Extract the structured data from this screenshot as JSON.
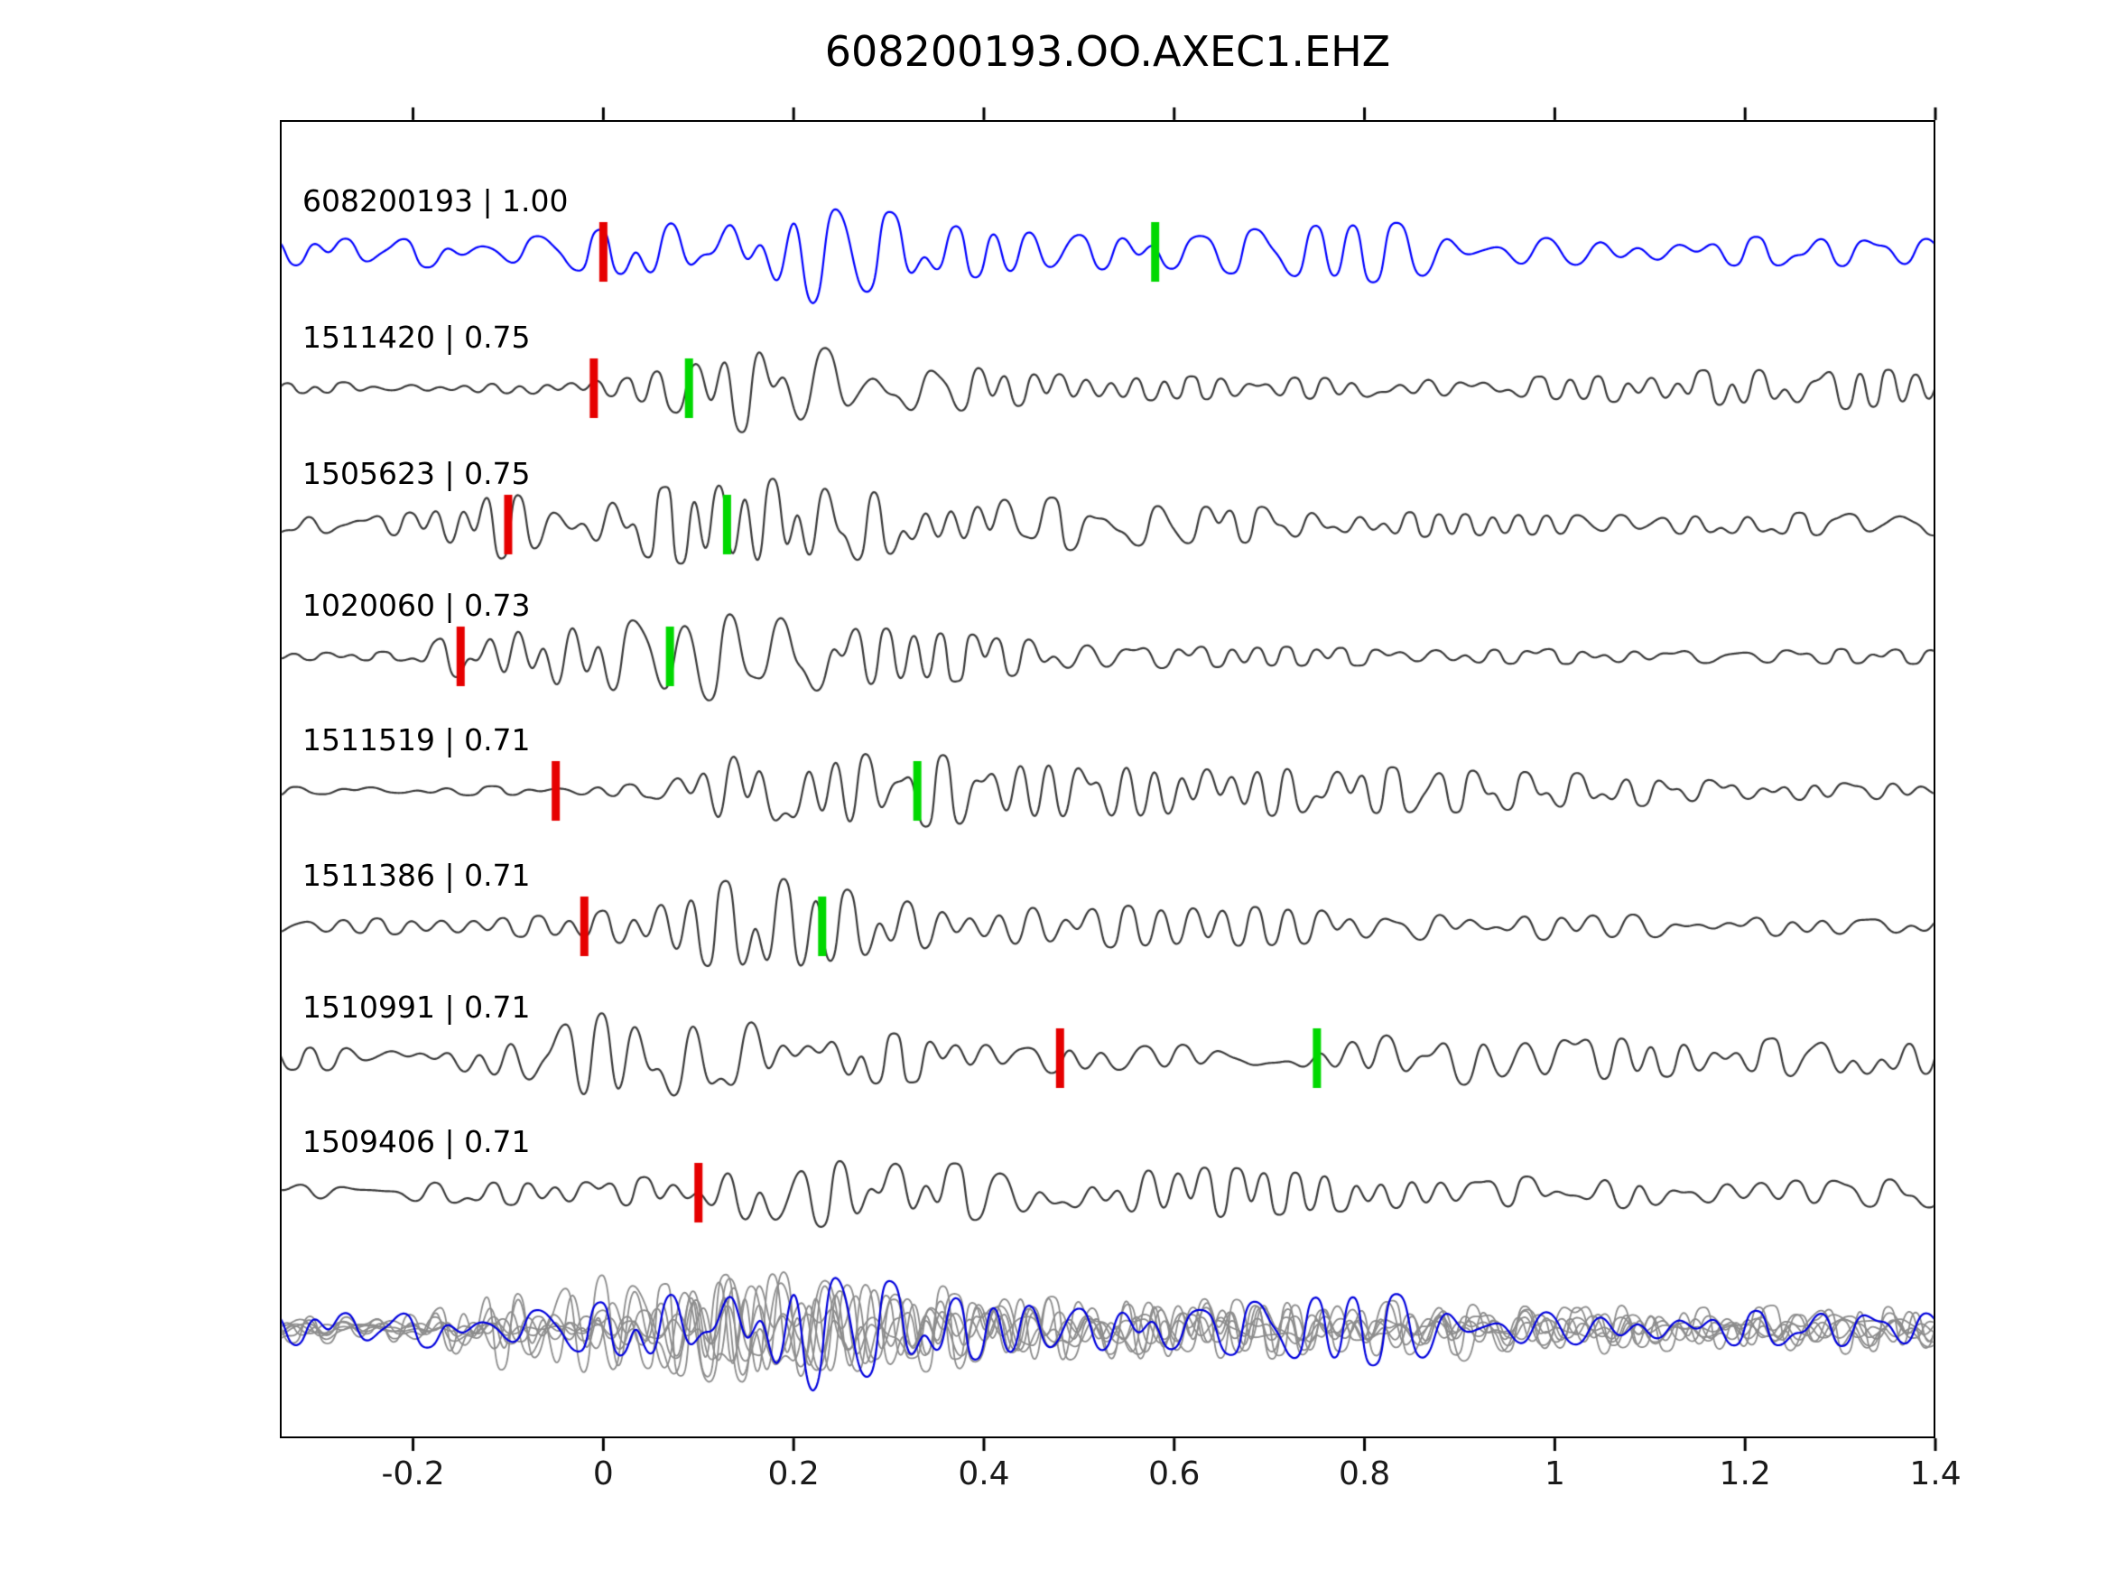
{
  "title": "608200193.OO.AXEC1.EHZ",
  "chart_data": {
    "type": "line",
    "title": "608200193.OO.AXEC1.EHZ",
    "xlabel": "",
    "ylabel": "",
    "xlim": [
      -0.34,
      1.4
    ],
    "grid": false,
    "legend": "none",
    "x_ticks": [
      {
        "value": -0.2,
        "label": "-0.2"
      },
      {
        "value": 0,
        "label": "0"
      },
      {
        "value": 0.2,
        "label": "0.2"
      },
      {
        "value": 0.4,
        "label": "0.4"
      },
      {
        "value": 0.6,
        "label": "0.6"
      },
      {
        "value": 0.8,
        "label": "0.8"
      },
      {
        "value": 1,
        "label": "1"
      },
      {
        "value": 1.2,
        "label": "1.2"
      },
      {
        "value": 1.4,
        "label": "1.4"
      }
    ],
    "colors": {
      "query_trace": "#0000ff",
      "match_trace": "#3a3a3a",
      "overlay_gray": "#8c8c8c",
      "overlay_blue": "#0000dd",
      "pick_red": "#e60000",
      "pick_green": "#00d800",
      "axis": "#000000"
    },
    "traces": [
      {
        "id": "608200193",
        "similarity": 1.0,
        "label": "608200193 | 1.00",
        "is_query": true,
        "red_pick": 0.0,
        "green_pick": 0.58,
        "envelope": [
          [
            -0.34,
            0.27
          ],
          [
            -0.05,
            0.3
          ],
          [
            0.05,
            0.5
          ],
          [
            0.15,
            0.92
          ],
          [
            0.22,
            1.0
          ],
          [
            0.35,
            0.5
          ],
          [
            0.5,
            0.37
          ],
          [
            0.62,
            0.33
          ],
          [
            0.72,
            0.47
          ],
          [
            0.8,
            0.53
          ],
          [
            0.88,
            0.5
          ],
          [
            1.0,
            0.33
          ],
          [
            1.2,
            0.27
          ],
          [
            1.4,
            0.3
          ]
        ]
      },
      {
        "id": "1511420",
        "similarity": 0.75,
        "label": "1511420 | 0.75",
        "is_query": false,
        "red_pick": -0.01,
        "green_pick": 0.09,
        "envelope": [
          [
            -0.34,
            0.1
          ],
          [
            -0.1,
            0.12
          ],
          [
            0.02,
            0.17
          ],
          [
            0.12,
            0.67
          ],
          [
            0.18,
            0.92
          ],
          [
            0.3,
            0.58
          ],
          [
            0.45,
            0.3
          ],
          [
            0.6,
            0.2
          ],
          [
            0.8,
            0.2
          ],
          [
            1.0,
            0.2
          ],
          [
            1.15,
            0.3
          ],
          [
            1.3,
            0.37
          ],
          [
            1.4,
            0.27
          ]
        ]
      },
      {
        "id": "1505623",
        "similarity": 0.75,
        "label": "1505623 | 0.75",
        "is_query": false,
        "red_pick": -0.1,
        "green_pick": 0.13,
        "envelope": [
          [
            -0.34,
            0.2
          ],
          [
            -0.2,
            0.23
          ],
          [
            -0.12,
            0.63
          ],
          [
            -0.05,
            0.42
          ],
          [
            0.05,
            0.58
          ],
          [
            0.12,
            0.75
          ],
          [
            0.2,
            0.83
          ],
          [
            0.3,
            0.58
          ],
          [
            0.45,
            0.47
          ],
          [
            0.6,
            0.37
          ],
          [
            0.75,
            0.27
          ],
          [
            0.9,
            0.2
          ],
          [
            1.1,
            0.2
          ],
          [
            1.4,
            0.2
          ]
        ]
      },
      {
        "id": "1020060",
        "similarity": 0.73,
        "label": "1020060 | 0.73",
        "is_query": false,
        "red_pick": -0.15,
        "green_pick": 0.07,
        "envelope": [
          [
            -0.34,
            0.07
          ],
          [
            -0.2,
            0.08
          ],
          [
            -0.16,
            0.42
          ],
          [
            -0.1,
            0.75
          ],
          [
            0.0,
            0.67
          ],
          [
            0.1,
            0.83
          ],
          [
            0.2,
            0.75
          ],
          [
            0.3,
            0.5
          ],
          [
            0.4,
            0.37
          ],
          [
            0.55,
            0.23
          ],
          [
            0.7,
            0.17
          ],
          [
            0.9,
            0.13
          ],
          [
            1.2,
            0.13
          ],
          [
            1.4,
            0.13
          ]
        ]
      },
      {
        "id": "1511519",
        "similarity": 0.71,
        "label": "1511519 | 0.71",
        "is_query": false,
        "red_pick": -0.05,
        "green_pick": 0.33,
        "envelope": [
          [
            -0.34,
            0.08
          ],
          [
            -0.1,
            0.08
          ],
          [
            0.05,
            0.13
          ],
          [
            0.13,
            0.75
          ],
          [
            0.2,
            0.83
          ],
          [
            0.3,
            0.63
          ],
          [
            0.45,
            0.58
          ],
          [
            0.6,
            0.5
          ],
          [
            0.75,
            0.42
          ],
          [
            0.9,
            0.37
          ],
          [
            1.05,
            0.3
          ],
          [
            1.2,
            0.17
          ],
          [
            1.3,
            0.2
          ],
          [
            1.4,
            0.17
          ]
        ]
      },
      {
        "id": "1511386",
        "similarity": 0.71,
        "label": "1511386 | 0.71",
        "is_query": false,
        "red_pick": -0.02,
        "green_pick": 0.23,
        "envelope": [
          [
            -0.34,
            0.13
          ],
          [
            -0.15,
            0.17
          ],
          [
            -0.02,
            0.2
          ],
          [
            0.1,
            0.67
          ],
          [
            0.17,
            0.92
          ],
          [
            0.25,
            0.67
          ],
          [
            0.35,
            0.42
          ],
          [
            0.5,
            0.37
          ],
          [
            0.65,
            0.37
          ],
          [
            0.8,
            0.3
          ],
          [
            0.95,
            0.27
          ],
          [
            1.1,
            0.23
          ],
          [
            1.25,
            0.2
          ],
          [
            1.4,
            0.17
          ]
        ]
      },
      {
        "id": "1510991",
        "similarity": 0.71,
        "label": "1510991 | 0.71",
        "is_query": false,
        "red_pick": 0.48,
        "green_pick": 0.75,
        "envelope": [
          [
            -0.34,
            0.2
          ],
          [
            -0.2,
            0.27
          ],
          [
            -0.08,
            0.5
          ],
          [
            0.0,
            0.83
          ],
          [
            0.1,
            0.75
          ],
          [
            0.2,
            0.67
          ],
          [
            0.3,
            0.42
          ],
          [
            0.45,
            0.3
          ],
          [
            0.55,
            0.27
          ],
          [
            0.7,
            0.3
          ],
          [
            0.8,
            0.43
          ],
          [
            0.9,
            0.5
          ],
          [
            1.0,
            0.47
          ],
          [
            1.1,
            0.33
          ],
          [
            1.2,
            0.27
          ],
          [
            1.3,
            0.47
          ],
          [
            1.4,
            0.3
          ]
        ]
      },
      {
        "id": "1509406",
        "similarity": 0.71,
        "label": "1509406 | 0.71",
        "is_query": false,
        "red_pick": 0.1,
        "green_pick": null,
        "envelope": [
          [
            -0.34,
            0.17
          ],
          [
            -0.2,
            0.2
          ],
          [
            0.0,
            0.23
          ],
          [
            0.1,
            0.33
          ],
          [
            0.17,
            0.67
          ],
          [
            0.25,
            0.58
          ],
          [
            0.35,
            0.5
          ],
          [
            0.5,
            0.42
          ],
          [
            0.62,
            0.47
          ],
          [
            0.75,
            0.33
          ],
          [
            0.9,
            0.27
          ],
          [
            1.05,
            0.3
          ],
          [
            1.2,
            0.23
          ],
          [
            1.4,
            0.27
          ]
        ]
      }
    ],
    "overlay_row": {
      "description": "All matched traces overlaid in gray with the query trace in blue"
    }
  }
}
